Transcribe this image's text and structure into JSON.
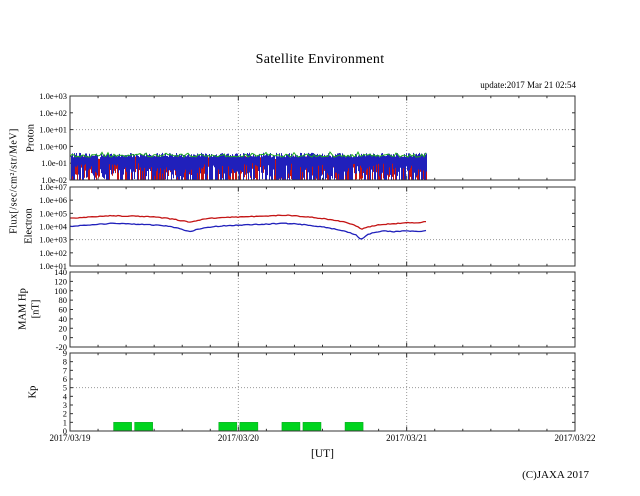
{
  "chart_data": {
    "type": "multi-panel-time-series",
    "title": "Satellite Environment",
    "update_text": "update:2017 Mar 21 02:54",
    "copyright": "(C)JAXA 2017",
    "flux_axis_label": "Flux[/sec/cm²/str/MeV]",
    "background": "#ffffff",
    "grid_color": "#999999",
    "frame_color": "#333333",
    "x": {
      "label": "[UT]",
      "tick_labels": [
        "2017/03/19",
        "2017/03/20",
        "2017/03/21",
        "2017/03/22"
      ],
      "span_days": 3,
      "minor_tick_hours": 4,
      "data_end_days": 2.12
    },
    "panels": [
      {
        "id": "proton",
        "ylabel": "Proton",
        "yscale": "log",
        "ylim": [
          0.01,
          1000
        ],
        "ytick_labels": [
          "1.0e+03",
          "1.0e+02",
          "1.0e+01",
          "1.0e+00",
          "1.0e-01",
          "1.0e-02"
        ],
        "threshold_value": 10,
        "data_end_days": 2.12,
        "series": [
          {
            "name": "red-series",
            "type": "spike-band",
            "color": "#c41414",
            "log10_top_range": [
              -0.85,
              -0.58
            ],
            "log10_bottom_range": [
              -2.0,
              -1.1
            ],
            "density": 0.92
          },
          {
            "name": "blue-series",
            "type": "spike-band",
            "color": "#2020bb",
            "log10_top_range": [
              -0.65,
              -0.38
            ],
            "log10_bottom_range": [
              -2.0,
              -1.0
            ],
            "density": 0.97
          },
          {
            "name": "green-series",
            "type": "noisy-line",
            "color": "#1faa1f",
            "log10_mean": -0.55,
            "log10_jitter": 0.09
          }
        ]
      },
      {
        "id": "electron",
        "ylabel": "Electron",
        "yscale": "log",
        "ylim": [
          10,
          10000000
        ],
        "ytick_labels": [
          "1.0e+07",
          "1.0e+06",
          "1.0e+05",
          "1.0e+04",
          "1.0e+03",
          "1.0e+02",
          "1.0e+01"
        ],
        "threshold_value": 1000,
        "data_end_days": 2.12,
        "series": [
          {
            "name": "red-series",
            "type": "line",
            "color": "#c41414",
            "t_days": [
              0.0,
              0.06,
              0.13,
              0.2,
              0.25,
              0.3,
              0.38,
              0.45,
              0.52,
              0.58,
              0.63,
              0.67,
              0.71,
              0.75,
              0.8,
              0.88,
              0.95,
              1.0,
              1.1,
              1.2,
              1.27,
              1.33,
              1.4,
              1.47,
              1.53,
              1.6,
              1.65,
              1.7,
              1.73,
              1.77,
              1.82,
              1.87,
              1.93,
              2.0,
              2.06,
              2.12
            ],
            "log10_values": [
              4.62,
              4.66,
              4.72,
              4.8,
              4.83,
              4.8,
              4.78,
              4.75,
              4.7,
              4.62,
              4.52,
              4.42,
              4.35,
              4.45,
              4.58,
              4.66,
              4.7,
              4.72,
              4.77,
              4.82,
              4.86,
              4.82,
              4.75,
              4.65,
              4.55,
              4.42,
              4.28,
              4.05,
              3.78,
              3.95,
              4.1,
              4.18,
              4.22,
              4.28,
              4.25,
              4.38
            ]
          },
          {
            "name": "blue-series",
            "type": "line",
            "color": "#2020bb",
            "t_days": [
              0.0,
              0.06,
              0.13,
              0.2,
              0.25,
              0.3,
              0.38,
              0.45,
              0.52,
              0.58,
              0.63,
              0.67,
              0.71,
              0.75,
              0.8,
              0.88,
              0.95,
              1.0,
              1.1,
              1.2,
              1.27,
              1.33,
              1.4,
              1.47,
              1.53,
              1.6,
              1.65,
              1.7,
              1.73,
              1.77,
              1.82,
              1.87,
              1.93,
              2.0,
              2.06,
              2.12
            ],
            "log10_values": [
              4.02,
              4.06,
              4.12,
              4.2,
              4.24,
              4.21,
              4.18,
              4.15,
              4.1,
              4.02,
              3.9,
              3.75,
              3.62,
              3.76,
              3.92,
              4.02,
              4.08,
              4.1,
              4.15,
              4.2,
              4.25,
              4.2,
              4.12,
              4.02,
              3.9,
              3.75,
              3.58,
              3.35,
              3.02,
              3.4,
              3.58,
              3.66,
              3.6,
              3.68,
              3.62,
              3.68
            ]
          }
        ]
      },
      {
        "id": "mam-hp",
        "ylabel": "MAM Hp",
        "ylabel2": "[nT]",
        "yscale": "linear",
        "ylim": [
          -20,
          140
        ],
        "ytick_labels": [
          "140",
          "120",
          "100",
          "80",
          "60",
          "40",
          "20",
          "0",
          "-20"
        ],
        "series": []
      },
      {
        "id": "kp",
        "ylabel": "Kp",
        "yscale": "linear",
        "ylim": [
          0,
          9
        ],
        "ytick_labels": [
          "9",
          "8",
          "7",
          "6",
          "5",
          "4",
          "3",
          "2",
          "1",
          "0"
        ],
        "threshold_value": 5,
        "bars": {
          "color": "#00d41e",
          "interval_hours": 3,
          "entries": [
            {
              "start_hour": 6,
              "value": 1
            },
            {
              "start_hour": 9,
              "value": 1
            },
            {
              "start_hour": 21,
              "value": 1
            },
            {
              "start_hour": 24,
              "value": 1
            },
            {
              "start_hour": 30,
              "value": 1
            },
            {
              "start_hour": 33,
              "value": 1
            },
            {
              "start_hour": 39,
              "value": 1
            }
          ]
        }
      }
    ]
  }
}
